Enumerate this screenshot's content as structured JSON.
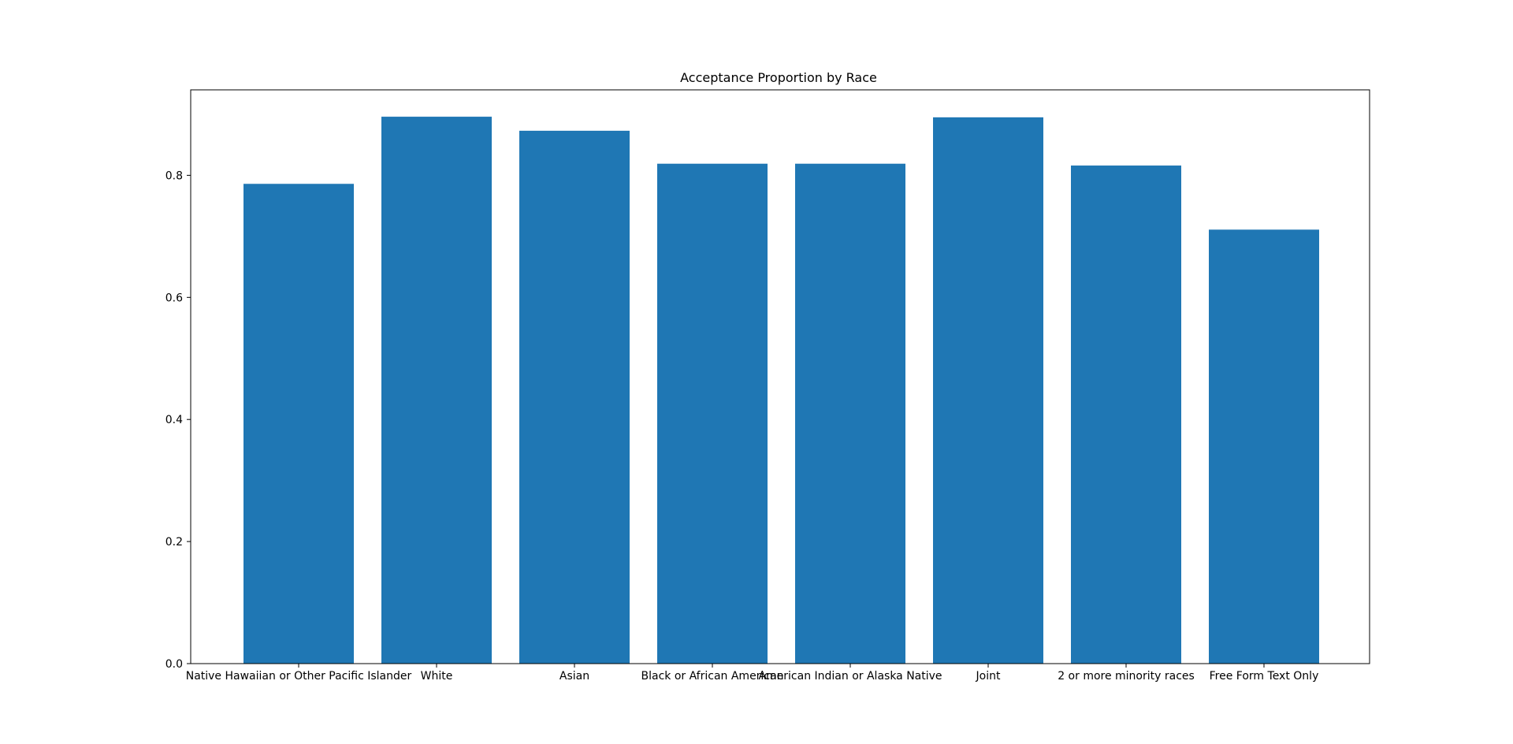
{
  "chart_data": {
    "type": "bar",
    "title": "Acceptance Proportion by Race",
    "xlabel": "",
    "ylabel": "",
    "categories": [
      "Native Hawaiian or Other Pacific Islander",
      "White",
      "Asian",
      "Black or African American",
      "American Indian or Alaska Native",
      "Joint",
      "2 or more minority races",
      "Free Form Text Only"
    ],
    "values": [
      0.786,
      0.896,
      0.873,
      0.819,
      0.819,
      0.895,
      0.816,
      0.711
    ],
    "ylim": [
      0,
      0.94
    ],
    "yticks": [
      0.0,
      0.2,
      0.4,
      0.6,
      0.8
    ],
    "ytick_labels": [
      "0.0",
      "0.2",
      "0.4",
      "0.6",
      "0.8"
    ],
    "grid": false,
    "colors": {
      "bar": "#1f77b4",
      "axis": "#000000",
      "background": "#ffffff"
    }
  }
}
